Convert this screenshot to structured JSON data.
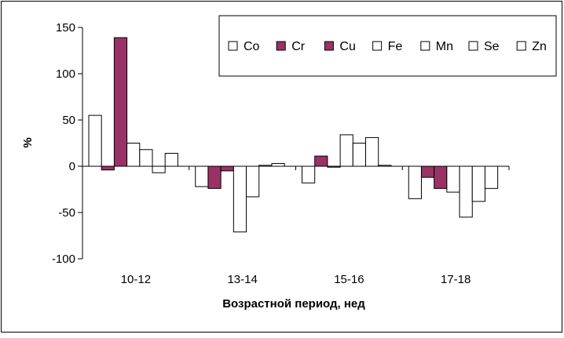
{
  "chart_data": {
    "type": "bar",
    "title": "",
    "xlabel": "Возрастной период, нед",
    "ylabel": "%",
    "ylim": [
      -100,
      150
    ],
    "yticks": [
      150,
      100,
      50,
      0,
      -50,
      -100
    ],
    "grid": false,
    "legend_position": "top-right",
    "categories": [
      "10-12",
      "13-14",
      "15-16",
      "17-18"
    ],
    "series": [
      {
        "name": "Co",
        "color": "#ffffff",
        "values": [
          55,
          -22,
          -18,
          -35
        ]
      },
      {
        "name": "Cr",
        "color": "#993366",
        "values": [
          -4,
          -24,
          11,
          -12
        ]
      },
      {
        "name": "Cu",
        "color": "#993366",
        "values": [
          139,
          -5,
          -1,
          -24
        ]
      },
      {
        "name": "Fe",
        "color": "#ffffff",
        "values": [
          25,
          -71,
          34,
          -28
        ]
      },
      {
        "name": "Mn",
        "color": "#ffffff",
        "values": [
          18,
          -33,
          25,
          -55
        ]
      },
      {
        "name": "Se",
        "color": "#ffffff",
        "values": [
          -7,
          1,
          31,
          -38
        ]
      },
      {
        "name": "Zn",
        "color": "#ffffff",
        "values": [
          14,
          3,
          1,
          -24
        ]
      }
    ]
  }
}
